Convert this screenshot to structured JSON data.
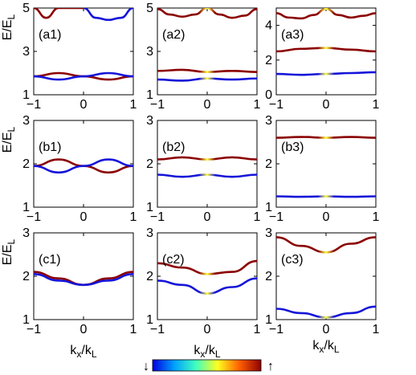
{
  "chart_data": {
    "type": "line",
    "note_axes": "3x3 grid of band-structure panels; x axis kx/kL from -1 to 1, y axis E/EL",
    "xlabel": {
      "base": "k",
      "sub": "x",
      "sep": "/",
      "base2": "k",
      "sub2": "L"
    },
    "ylabel": {
      "base": "E/E",
      "sub": "L"
    },
    "xlim": [
      -1,
      1
    ],
    "xticks": [
      "-1",
      "0",
      "1"
    ],
    "colorbar": {
      "low_label": "↓",
      "high_label": "↑",
      "colors": [
        "#0000e0",
        "#00a0ff",
        "#40ffc0",
        "#ffff20",
        "#ff6000",
        "#900000"
      ]
    },
    "panels": [
      {
        "label": "(a1)",
        "ylim": [
          1,
          5
        ],
        "yticks": [
          "1",
          "3",
          "5"
        ],
        "curves": [
          {
            "points": [
              [
                -1,
                5.0
              ],
              [
                -0.75,
                4.55
              ],
              [
                -0.5,
                5.0
              ]
            ],
            "color": "#8b0000"
          },
          {
            "points": [
              [
                -0.5,
                5.0
              ],
              [
                0,
                5.0
              ]
            ],
            "color": "#8b0000"
          },
          {
            "points": [
              [
                0,
                5.0
              ],
              [
                0.25,
                4.55
              ],
              [
                0.5,
                4.45
              ],
              [
                0.75,
                4.55
              ],
              [
                1,
                5.0
              ]
            ],
            "color": "#1515d8"
          },
          {
            "points": [
              [
                -1,
                1.85
              ],
              [
                -0.5,
                2.0
              ],
              [
                0,
                1.85
              ],
              [
                0.5,
                1.7
              ],
              [
                1,
                1.85
              ]
            ],
            "color": "#8b0000"
          },
          {
            "points": [
              [
                -1,
                1.85
              ],
              [
                -0.5,
                1.7
              ],
              [
                0,
                1.85
              ],
              [
                0.5,
                2.0
              ],
              [
                1,
                1.85
              ]
            ],
            "color": "#1515d8"
          }
        ]
      },
      {
        "label": "(a2)",
        "ylim": [
          1,
          5
        ],
        "yticks": [
          "1",
          "3",
          "5"
        ],
        "curves": [
          {
            "points": [
              [
                -1,
                4.95
              ],
              [
                -0.75,
                4.7
              ],
              [
                -0.5,
                4.6
              ],
              [
                -0.25,
                4.7
              ],
              [
                0,
                5.0
              ],
              [
                0.25,
                4.7
              ],
              [
                0.5,
                4.55
              ],
              [
                0.75,
                4.65
              ],
              [
                1,
                4.95
              ]
            ],
            "color": "#8b0000",
            "gradient": true
          },
          {
            "points": [
              [
                -1,
                2.1
              ],
              [
                -0.5,
                2.15
              ],
              [
                0,
                2.05
              ],
              [
                0.5,
                2.1
              ],
              [
                1,
                2.05
              ]
            ],
            "color": "#8b0000",
            "gradient": true
          },
          {
            "points": [
              [
                -1,
                1.7
              ],
              [
                -0.5,
                1.65
              ],
              [
                0,
                1.75
              ],
              [
                0.5,
                1.7
              ],
              [
                1,
                1.75
              ]
            ],
            "color": "#1515d8",
            "gradient": true
          }
        ]
      },
      {
        "label": "(a3)",
        "ylim": [
          0,
          5
        ],
        "yticks": [
          "0",
          "2",
          "4"
        ],
        "curves": [
          {
            "points": [
              [
                -1,
                4.7
              ],
              [
                -0.75,
                4.45
              ],
              [
                -0.5,
                4.4
              ],
              [
                -0.25,
                4.6
              ],
              [
                0,
                4.95
              ],
              [
                0.25,
                4.6
              ],
              [
                0.5,
                4.45
              ],
              [
                0.75,
                4.55
              ],
              [
                1,
                4.7
              ]
            ],
            "color": "#8b0000",
            "gradient": true
          },
          {
            "points": [
              [
                -1,
                2.5
              ],
              [
                -0.5,
                2.65
              ],
              [
                0,
                2.7
              ],
              [
                0.5,
                2.6
              ],
              [
                1,
                2.5
              ]
            ],
            "color": "#8b0000",
            "gradient": true
          },
          {
            "points": [
              [
                -1,
                1.2
              ],
              [
                -0.5,
                1.15
              ],
              [
                0,
                1.2
              ],
              [
                0.5,
                1.25
              ],
              [
                1,
                1.3
              ]
            ],
            "color": "#1515d8",
            "gradient": true
          }
        ]
      },
      {
        "label": "(b1)",
        "ylim": [
          1,
          3
        ],
        "yticks": [
          "1",
          "2",
          "3"
        ],
        "curves": [
          {
            "points": [
              [
                -1,
                1.95
              ],
              [
                -0.5,
                2.1
              ],
              [
                0,
                1.95
              ],
              [
                0.5,
                1.8
              ],
              [
                1,
                1.95
              ]
            ],
            "color": "#8b0000"
          },
          {
            "points": [
              [
                -1,
                1.95
              ],
              [
                -0.5,
                1.8
              ],
              [
                0,
                1.95
              ],
              [
                0.5,
                2.1
              ],
              [
                1,
                1.95
              ]
            ],
            "color": "#1515d8"
          }
        ]
      },
      {
        "label": "(b2)",
        "ylim": [
          1,
          3
        ],
        "yticks": [
          "1",
          "2",
          "3"
        ],
        "curves": [
          {
            "points": [
              [
                -1,
                2.1
              ],
              [
                -0.5,
                2.15
              ],
              [
                0,
                2.1
              ],
              [
                0.5,
                2.15
              ],
              [
                1,
                2.1
              ]
            ],
            "color": "#8b0000",
            "gradient": true
          },
          {
            "points": [
              [
                -1,
                1.75
              ],
              [
                -0.5,
                1.7
              ],
              [
                0,
                1.75
              ],
              [
                0.5,
                1.7
              ],
              [
                1,
                1.75
              ]
            ],
            "color": "#1515d8",
            "gradient": true
          }
        ]
      },
      {
        "label": "(b3)",
        "ylim": [
          1,
          3
        ],
        "yticks": [
          "1",
          "2",
          "3"
        ],
        "curves": [
          {
            "points": [
              [
                -1,
                2.6
              ],
              [
                -0.5,
                2.62
              ],
              [
                0,
                2.6
              ],
              [
                0.5,
                2.62
              ],
              [
                1,
                2.6
              ]
            ],
            "color": "#8b0000",
            "gradient": true
          },
          {
            "points": [
              [
                -1,
                1.25
              ],
              [
                -0.5,
                1.24
              ],
              [
                0,
                1.25
              ],
              [
                0.5,
                1.24
              ],
              [
                1,
                1.25
              ]
            ],
            "color": "#1515d8",
            "gradient": true
          }
        ]
      },
      {
        "label": "(c1)",
        "ylim": [
          1,
          3
        ],
        "yticks": [
          "1",
          "2",
          "3"
        ],
        "curves": [
          {
            "points": [
              [
                -1,
                2.1
              ],
              [
                -0.5,
                1.95
              ],
              [
                0,
                1.8
              ],
              [
                0.5,
                1.95
              ],
              [
                1,
                2.1
              ]
            ],
            "color": "#8b0000"
          },
          {
            "points": [
              [
                -1,
                2.05
              ],
              [
                -0.5,
                1.9
              ],
              [
                0,
                1.8
              ],
              [
                0.5,
                1.9
              ],
              [
                1,
                2.05
              ]
            ],
            "color": "#1515d8"
          }
        ]
      },
      {
        "label": "(c2)",
        "ylim": [
          1,
          3
        ],
        "yticks": [
          "1",
          "2",
          "3"
        ],
        "curves": [
          {
            "points": [
              [
                -1,
                2.3
              ],
              [
                -0.5,
                2.2
              ],
              [
                0,
                2.05
              ],
              [
                0.5,
                2.1
              ],
              [
                1,
                2.35
              ]
            ],
            "color": "#8b0000",
            "gradient": true
          },
          {
            "points": [
              [
                -1,
                1.9
              ],
              [
                -0.5,
                1.8
              ],
              [
                0,
                1.6
              ],
              [
                0.5,
                1.75
              ],
              [
                1,
                1.95
              ]
            ],
            "color": "#1515d8",
            "gradient": true
          }
        ]
      },
      {
        "label": "(c3)",
        "ylim": [
          1,
          3
        ],
        "yticks": [
          "1",
          "2",
          "3"
        ],
        "curves": [
          {
            "points": [
              [
                -1,
                2.9
              ],
              [
                -0.5,
                2.7
              ],
              [
                0,
                2.55
              ],
              [
                0.5,
                2.75
              ],
              [
                1,
                2.9
              ]
            ],
            "color": "#8b0000",
            "gradient": true
          },
          {
            "points": [
              [
                -1,
                1.25
              ],
              [
                -0.5,
                1.15
              ],
              [
                0,
                1.05
              ],
              [
                0.5,
                1.15
              ],
              [
                1,
                1.3
              ]
            ],
            "color": "#1515d8",
            "gradient": true
          }
        ]
      }
    ]
  }
}
